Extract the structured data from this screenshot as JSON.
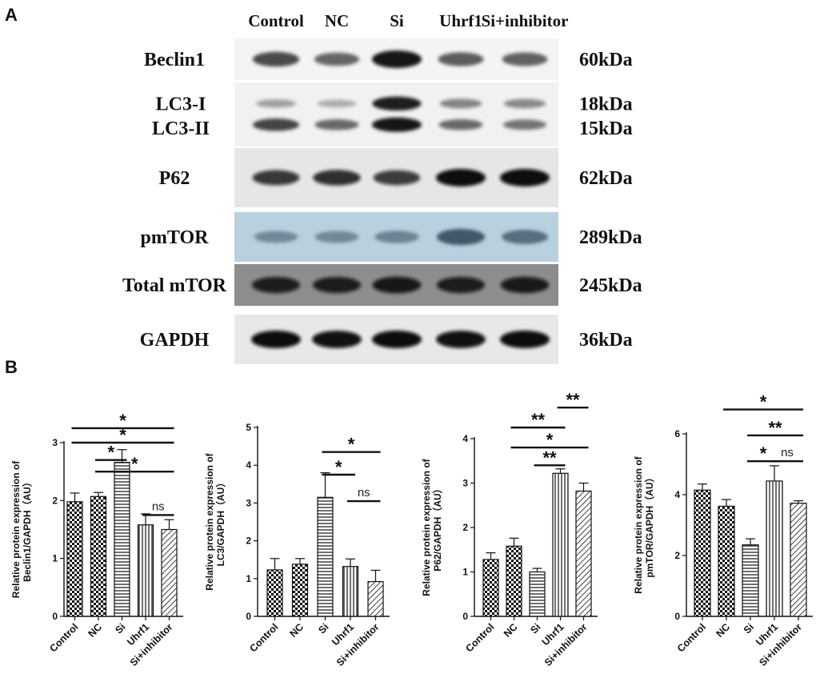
{
  "panel_a": {
    "letter": "A",
    "lanes": [
      "Control",
      "NC",
      "Si",
      "Uhrf1",
      "Si+inhibitor"
    ],
    "blots": [
      {
        "label": "Beclin1",
        "kda": "60kDa",
        "bg": "#f4f4f4",
        "band": "#141414",
        "lanes": [
          {
            "i": 0.7
          },
          {
            "i": 0.55
          },
          {
            "i": 1.0
          },
          {
            "i": 0.6
          },
          {
            "i": 0.58
          }
        ]
      },
      {
        "label": "LC3-I",
        "label2": "LC3-II",
        "kda": "18kDa",
        "kda2": "15kDa",
        "bg": "#f1f1f1",
        "band": "#141414",
        "lanes": [
          {
            "i": 0.25,
            "i2": 0.75
          },
          {
            "i": 0.18,
            "i2": 0.55
          },
          {
            "i": 0.95,
            "i2": 1.0
          },
          {
            "i": 0.4,
            "i2": 0.55
          },
          {
            "i": 0.38,
            "i2": 0.5
          }
        ]
      },
      {
        "label": "P62",
        "kda": "62kDa",
        "bg": "#e6e6e6",
        "band": "#0e0e0e",
        "lanes": [
          {
            "i": 0.75
          },
          {
            "i": 0.8
          },
          {
            "i": 0.72
          },
          {
            "i": 1.0
          },
          {
            "i": 1.0
          }
        ]
      },
      {
        "label": "pmTOR",
        "kda": "289kDa",
        "bg": "#b9d0de",
        "band": "#33475a",
        "lanes": [
          {
            "i": 0.4
          },
          {
            "i": 0.4
          },
          {
            "i": 0.45
          },
          {
            "i": 0.85
          },
          {
            "i": 0.65
          }
        ]
      },
      {
        "label": "Total mTOR",
        "kda": "245kDa",
        "bg": "#8d8d8d",
        "band": "#111111",
        "lanes": [
          {
            "i": 0.85
          },
          {
            "i": 0.85
          },
          {
            "i": 0.9
          },
          {
            "i": 0.85
          },
          {
            "i": 0.88
          }
        ]
      },
      {
        "label": "GAPDH",
        "kda": "36kDa",
        "bg": "#e8e8e8",
        "band": "#080808",
        "lanes": [
          {
            "i": 1.0
          },
          {
            "i": 0.98
          },
          {
            "i": 1.0
          },
          {
            "i": 0.98
          },
          {
            "i": 1.0
          }
        ]
      }
    ]
  },
  "panel_b": {
    "letter": "B"
  },
  "colors": {
    "ink": "#111111",
    "bar_fill": "#ffffff"
  },
  "chart_data": [
    {
      "type": "bar",
      "ylabel": "Relative protein expression of Beclin1/GAPDH（AU）",
      "categories": [
        "Control",
        "NC",
        "Si",
        "Uhrf1",
        "Si+inhibitor"
      ],
      "values": [
        1.98,
        2.07,
        2.66,
        1.58,
        1.5
      ],
      "errors": [
        0.15,
        0.07,
        0.22,
        0.19,
        0.17
      ],
      "patterns": [
        "checker",
        "checker",
        "hlines",
        "vlines",
        "diag"
      ],
      "ylim": [
        0,
        3
      ],
      "yticks": [
        0,
        1,
        2,
        3
      ],
      "significance": [
        {
          "from": 0,
          "to": 4,
          "y": 3.25,
          "label": "*"
        },
        {
          "from": 0,
          "to": 4,
          "y": 3.0,
          "label": "*"
        },
        {
          "from": 1,
          "to": 2,
          "y": 2.7,
          "label": "*"
        },
        {
          "from": 1,
          "to": 4,
          "y": 2.5,
          "label": "*"
        },
        {
          "from": 3,
          "to": 4,
          "y": 1.75,
          "label": "ns"
        }
      ]
    },
    {
      "type": "bar",
      "ylabel": "Relative protein expression of LC3/GAPDH（AU）",
      "categories": [
        "Control",
        "NC",
        "Si",
        "Uhrf1",
        "Si+inhibitor"
      ],
      "values": [
        1.23,
        1.38,
        3.15,
        1.32,
        0.92
      ],
      "errors": [
        0.3,
        0.15,
        0.65,
        0.2,
        0.3
      ],
      "patterns": [
        "checker",
        "checker",
        "hlines",
        "vlines",
        "diag"
      ],
      "ylim": [
        0,
        5
      ],
      "yticks": [
        0,
        1,
        2,
        3,
        4,
        5
      ],
      "significance": [
        {
          "from": 2,
          "to": 4,
          "y": 4.35,
          "label": "*"
        },
        {
          "from": 2,
          "to": 3,
          "y": 3.75,
          "label": "*"
        },
        {
          "from": 3,
          "to": 4,
          "y": 3.05,
          "label": "ns"
        }
      ]
    },
    {
      "type": "bar",
      "ylabel": "Relative protein expression of P62/GAPDH（AU）",
      "categories": [
        "Control",
        "NC",
        "Si",
        "Uhrf1",
        "Si+inhibitor"
      ],
      "values": [
        1.28,
        1.58,
        1.0,
        3.22,
        2.82
      ],
      "errors": [
        0.15,
        0.18,
        0.08,
        0.1,
        0.18
      ],
      "patterns": [
        "checker",
        "checker",
        "hlines",
        "vlines",
        "diag"
      ],
      "ylim": [
        0,
        4
      ],
      "yticks": [
        0,
        1,
        2,
        3,
        4
      ],
      "significance": [
        {
          "from": 3,
          "to": 4,
          "y": 4.7,
          "label": "**"
        },
        {
          "from": 1,
          "to": 3,
          "y": 4.25,
          "label": "**"
        },
        {
          "from": 1,
          "to": 4,
          "y": 3.8,
          "label": "*"
        },
        {
          "from": 2,
          "to": 3,
          "y": 3.4,
          "label": "**"
        }
      ]
    },
    {
      "type": "bar",
      "ylabel": "Relative protein expression of pmTOR/GAPDH（AU）",
      "categories": [
        "Control",
        "NC",
        "Si",
        "Uhrf1",
        "Si+inhibitor"
      ],
      "values": [
        4.15,
        3.62,
        2.35,
        4.45,
        3.72
      ],
      "errors": [
        0.2,
        0.22,
        0.2,
        0.5,
        0.08
      ],
      "patterns": [
        "checker",
        "checker",
        "hlines",
        "vlines",
        "diag"
      ],
      "ylim": [
        0,
        6
      ],
      "yticks": [
        0,
        2,
        4,
        6
      ],
      "significance": [
        {
          "from": 1,
          "to": 4,
          "y": 6.8,
          "label": "*"
        },
        {
          "from": 2,
          "to": 4,
          "y": 5.95,
          "label": "**"
        },
        {
          "from": 2,
          "to": 3,
          "y": 5.1,
          "label": "*"
        },
        {
          "from": 3,
          "to": 4,
          "y": 5.1,
          "label": "ns"
        }
      ]
    }
  ]
}
